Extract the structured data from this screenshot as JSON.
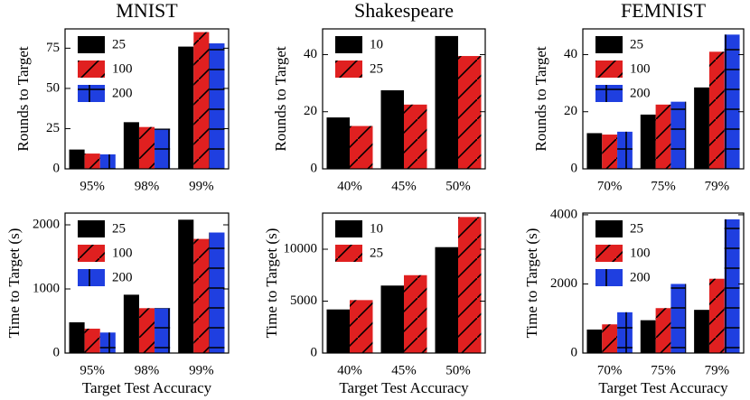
{
  "chart_data": [
    {
      "type": "bar",
      "title": "MNIST",
      "ylabel": "Rounds to Target",
      "categories": [
        "95%",
        "98%",
        "99%"
      ],
      "series": [
        {
          "name": "25",
          "color": "#000000",
          "hatch": "none",
          "values": [
            12,
            29,
            76
          ]
        },
        {
          "name": "100",
          "color": "#e02020",
          "hatch": "/",
          "values": [
            9.5,
            26,
            85
          ]
        },
        {
          "name": "200",
          "color": "#1f3fe0",
          "hatch": "+",
          "values": [
            9,
            25,
            78
          ]
        }
      ],
      "ylim": [
        0,
        87
      ],
      "yticks": [
        0,
        25,
        50,
        75
      ],
      "legend": "upper left"
    },
    {
      "type": "bar",
      "title": "Shakespeare",
      "ylabel": "Rounds to Target",
      "categories": [
        "40%",
        "45%",
        "50%"
      ],
      "series": [
        {
          "name": "10",
          "color": "#000000",
          "hatch": "none",
          "values": [
            18,
            27.5,
            46.5
          ]
        },
        {
          "name": "25",
          "color": "#e02020",
          "hatch": "/",
          "values": [
            15,
            22.5,
            39.5
          ]
        }
      ],
      "ylim": [
        0,
        49
      ],
      "yticks": [
        0,
        20,
        40
      ],
      "legend": "upper left"
    },
    {
      "type": "bar",
      "title": "FEMNIST",
      "ylabel": "Rounds to Target",
      "categories": [
        "70%",
        "75%",
        "79%"
      ],
      "series": [
        {
          "name": "25",
          "color": "#000000",
          "hatch": "none",
          "values": [
            12.5,
            19,
            28.5
          ]
        },
        {
          "name": "100",
          "color": "#e02020",
          "hatch": "/",
          "values": [
            12,
            22.5,
            41
          ]
        },
        {
          "name": "200",
          "color": "#1f3fe0",
          "hatch": "+",
          "values": [
            13,
            23.5,
            47
          ]
        }
      ],
      "ylim": [
        0,
        49
      ],
      "yticks": [
        0,
        20,
        40
      ],
      "legend": "upper left"
    },
    {
      "type": "bar",
      "ylabel": "Time to Target (s)",
      "xlabel": "Target Test Accuracy",
      "categories": [
        "95%",
        "98%",
        "99%"
      ],
      "series": [
        {
          "name": "25",
          "color": "#000000",
          "hatch": "none",
          "values": [
            480,
            910,
            2080
          ]
        },
        {
          "name": "100",
          "color": "#e02020",
          "hatch": "/",
          "values": [
            380,
            700,
            1780
          ]
        },
        {
          "name": "200",
          "color": "#1f3fe0",
          "hatch": "+",
          "values": [
            320,
            700,
            1880
          ]
        }
      ],
      "ylim": [
        0,
        2183
      ],
      "yticks": [
        0,
        1000,
        2000
      ],
      "legend": "upper left"
    },
    {
      "type": "bar",
      "ylabel": "Time to Target (s)",
      "xlabel": "Target Test Accuracy",
      "categories": [
        "40%",
        "45%",
        "50%"
      ],
      "series": [
        {
          "name": "10",
          "color": "#000000",
          "hatch": "none",
          "values": [
            4200,
            6500,
            10200
          ]
        },
        {
          "name": "25",
          "color": "#e02020",
          "hatch": "/",
          "values": [
            5100,
            7500,
            13100
          ]
        }
      ],
      "ylim": [
        0,
        13480
      ],
      "yticks": [
        0,
        5000,
        10000
      ],
      "legend": "upper left"
    },
    {
      "type": "bar",
      "ylabel": "Time to Target (s)",
      "xlabel": "Target Test Accuracy",
      "categories": [
        "70%",
        "75%",
        "79%"
      ],
      "series": [
        {
          "name": "25",
          "color": "#000000",
          "hatch": "none",
          "values": [
            680,
            950,
            1250
          ]
        },
        {
          "name": "100",
          "color": "#e02020",
          "hatch": "/",
          "values": [
            830,
            1300,
            2150
          ]
        },
        {
          "name": "200",
          "color": "#1f3fe0",
          "hatch": "+",
          "values": [
            1180,
            2000,
            3870
          ]
        }
      ],
      "ylim": [
        0,
        4050
      ],
      "yticks": [
        0,
        2000,
        4000
      ],
      "legend": "upper left"
    }
  ]
}
